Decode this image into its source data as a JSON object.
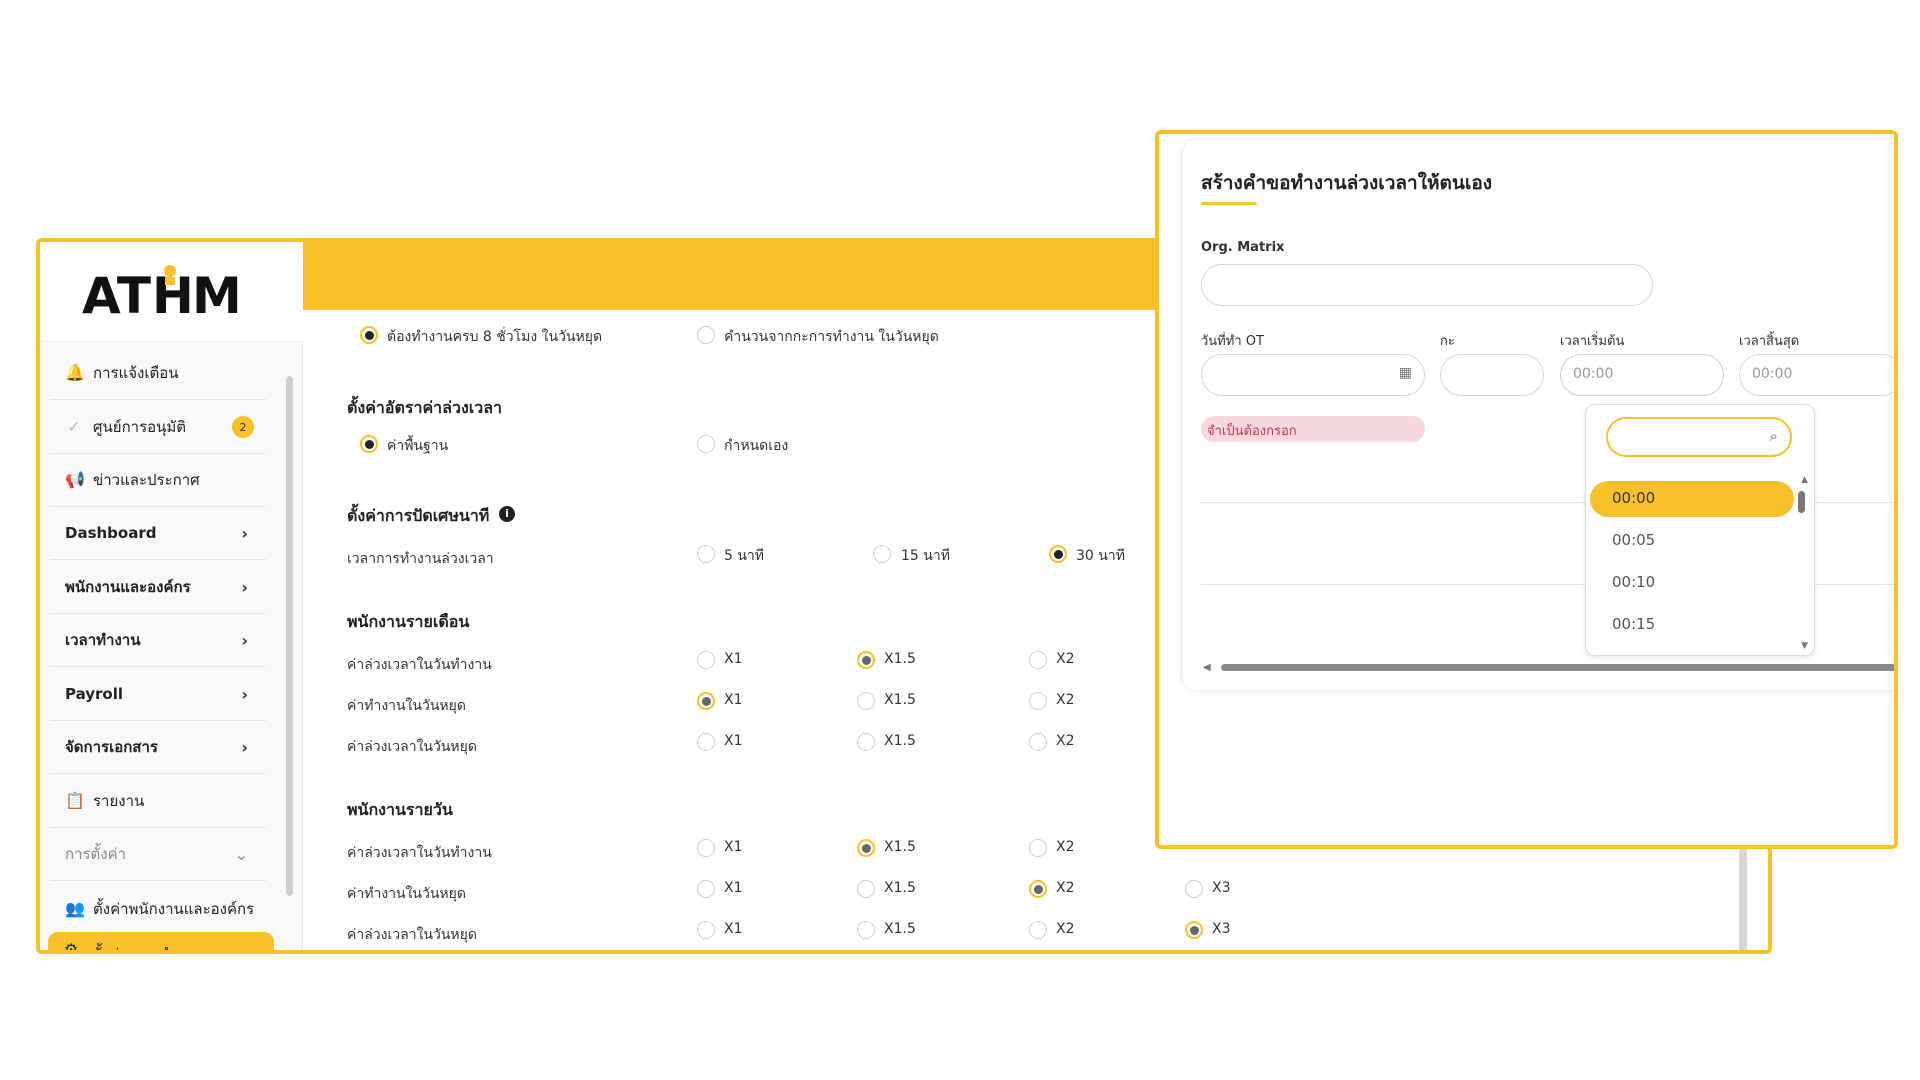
{
  "brand": {
    "logo": "ATHM",
    "accent": "#f7c12b"
  },
  "sidebar": {
    "items": [
      {
        "label": "การแจ้งเตือน",
        "icon": "bell-icon"
      },
      {
        "label": "ศูนย์การอนุมัติ",
        "icon": "check-icon",
        "badge": "2"
      },
      {
        "label": "ข่าวและประกาศ",
        "icon": "megaphone-icon"
      },
      {
        "label": "Dashboard"
      },
      {
        "label": "พนักงานและองค์กร"
      },
      {
        "label": "เวลาทำงาน"
      },
      {
        "label": "Payroll"
      },
      {
        "label": "จัดการเอกสาร"
      },
      {
        "label": "รายงาน",
        "icon": "clipboard-icon"
      }
    ],
    "settings_section": "การตั้งค่า",
    "settings_items": [
      {
        "label": "ตั้งค่าพนักงานและองค์กร",
        "icon": "users-gear-icon"
      },
      {
        "label": "ตั้งค่าเวลาทำงาน",
        "icon": "gear-icon"
      }
    ]
  },
  "content": {
    "holiday_opt1": "ต้องทำงานครบ 8 ชั่วโมง ในวันหยุด",
    "holiday_opt2": "คำนวนจากกะการทำงาน ในวันหยุด",
    "ot_rate_heading": "ตั้งค่าอัตราค่าล่วงเวลา",
    "ot_rate_opt1": "ค่าพื้นฐาน",
    "ot_rate_opt2": "กำหนดเอง",
    "rounding_heading": "ตั้งค่าการปัดเศษนาที",
    "rounding_label": "เวลาการทำงานล่วงเวลา",
    "rounding_options": [
      "5 นาที",
      "15 นาที",
      "30 นาที"
    ],
    "monthly_heading": "พนักงานรายเดือน",
    "daily_heading": "พนักงานรายวัน",
    "row_labels": [
      "ค่าล่วงเวลาในวันทำงาน",
      "ค่าทำงานในวันหยุด",
      "ค่าล่วงเวลาในวันหยุด"
    ],
    "multipliers": [
      "X1",
      "X1.5",
      "X2",
      "X3"
    ]
  },
  "dialog": {
    "title": "สร้างคำขอทำงานล่วงเวลาให้ตนเอง",
    "org_label": "Org. Matrix",
    "date_label": "วันที่ทำ OT",
    "shift_label": "กะ",
    "start_label": "เวลาเริ่มต้น",
    "end_label": "เวลาสิ้นสุด",
    "start_value": "00:00",
    "end_value": "00:00",
    "required_text": "จำเป็นต้องกรอก",
    "time_options": [
      "00:00",
      "00:05",
      "00:10",
      "00:15"
    ]
  }
}
